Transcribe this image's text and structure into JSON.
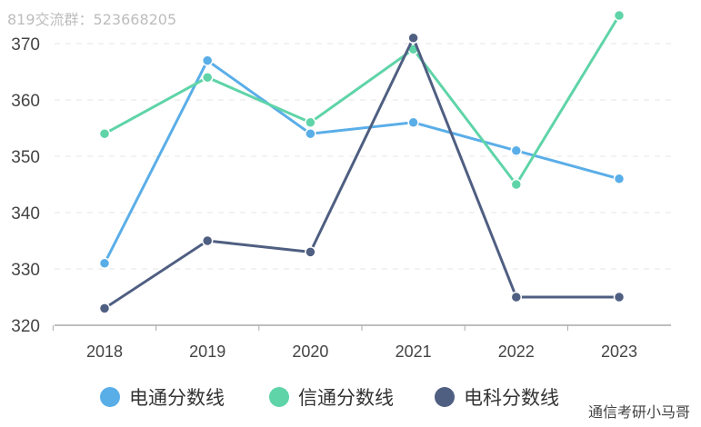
{
  "watermark_top": "819交流群：523668205",
  "watermark_bottom": "通信考研小马哥",
  "chart_data": {
    "type": "line",
    "x": [
      "2018",
      "2019",
      "2020",
      "2021",
      "2022",
      "2023"
    ],
    "yticks": [
      320,
      330,
      340,
      350,
      360,
      370
    ],
    "ylim": [
      320,
      370
    ],
    "grid": true,
    "legend_position": "bottom",
    "series": [
      {
        "name": "电通分数线",
        "color": "#5aaee8",
        "values": [
          331,
          367,
          354,
          356,
          351,
          346
        ]
      },
      {
        "name": "信通分数线",
        "color": "#5fd4a8",
        "values": [
          354,
          364,
          356,
          369,
          345,
          375
        ]
      },
      {
        "name": "电科分数线",
        "color": "#4f5f82",
        "values": [
          323,
          335,
          333,
          371,
          325,
          325
        ]
      }
    ]
  }
}
